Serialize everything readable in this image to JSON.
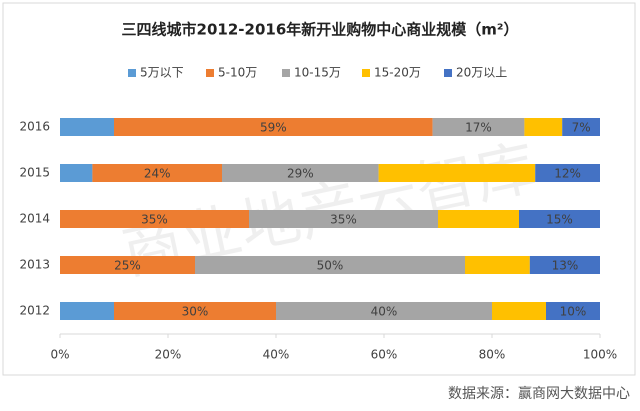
{
  "chart_data": {
    "type": "stacked-bar-horizontal",
    "title": "三四线城市2012-2016年新开业购物中心商业规模（m²）",
    "categories": [
      "2016",
      "2015",
      "2014",
      "2013",
      "2012"
    ],
    "series": [
      {
        "name": "5万以下",
        "color": "#5b9bd5",
        "values": [
          10,
          6,
          0,
          0,
          10
        ],
        "value_labels": [
          null,
          null,
          null,
          null,
          null
        ]
      },
      {
        "name": "5-10万",
        "color": "#ed7d31",
        "values": [
          59,
          24,
          35,
          25,
          30
        ],
        "value_labels": [
          "59%",
          "24%",
          "35%",
          "25%",
          "30%"
        ]
      },
      {
        "name": "10-15万",
        "color": "#a5a5a5",
        "values": [
          17,
          29,
          35,
          50,
          40
        ],
        "value_labels": [
          "17%",
          "29%",
          "35%",
          "50%",
          "40%"
        ]
      },
      {
        "name": "15-20万",
        "color": "#ffc000",
        "values": [
          7,
          29,
          15,
          12,
          10
        ],
        "value_labels": [
          null,
          null,
          null,
          null,
          null
        ]
      },
      {
        "name": "20万以上",
        "color": "#4472c4",
        "values": [
          7,
          12,
          15,
          13,
          10
        ],
        "value_labels": [
          "7%",
          "12%",
          "15%",
          "13%",
          "10%"
        ]
      }
    ],
    "xlim": [
      0,
      100
    ],
    "xticks": [
      {
        "value": 0,
        "label": "0%"
      },
      {
        "value": 20,
        "label": "20%"
      },
      {
        "value": 40,
        "label": "40%"
      },
      {
        "value": 60,
        "label": "60%"
      },
      {
        "value": 80,
        "label": "80%"
      },
      {
        "value": 100,
        "label": "100%"
      }
    ],
    "watermark": "商业地产云智库",
    "source": "数据来源：赢商网大数据中心"
  }
}
